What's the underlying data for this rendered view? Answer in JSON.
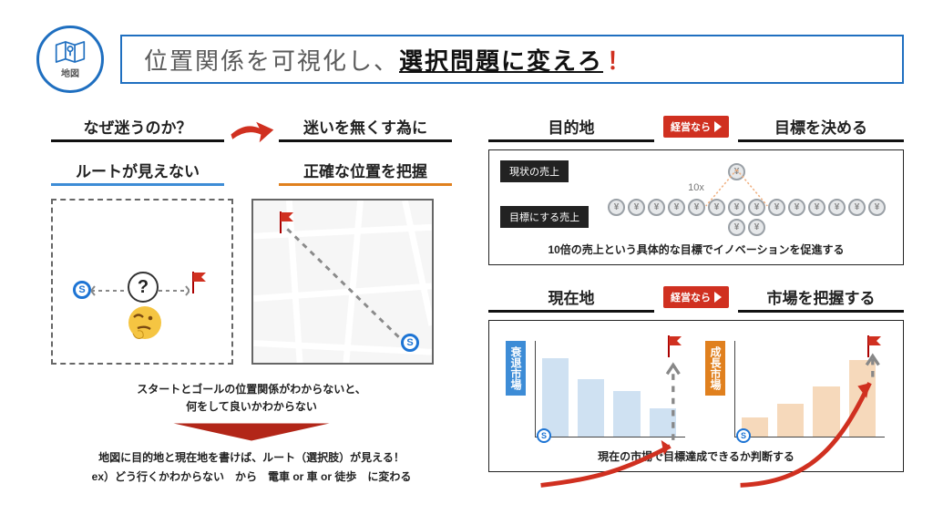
{
  "colors": {
    "brand_blue": "#1f6fc0",
    "underline_blue": "#3d8cd6",
    "underline_orange": "#e0801e",
    "red": "#d03020",
    "black": "#111111",
    "gray": "#666666",
    "coin_border": "#9aa0a6",
    "coin_fill": "#e6e8ea",
    "bar_blue": "#cfe1f2",
    "bar_orange": "#f6d9bb",
    "bg": "#ffffff"
  },
  "header": {
    "icon_label": "地図",
    "title_pre": "位置関係を可視化し、",
    "title_emph": "選択問題に変えろ",
    "title_bang": "！"
  },
  "left": {
    "q1": "なぜ迷うのか？",
    "q2": "迷いを無くす為に",
    "sub1": "ルートが見えない",
    "sub2": "正確な位置を把握",
    "question_mark": "?",
    "note_line1": "スタートとゴールの位置関係がわからないと、",
    "note_line2": "何をして良いかわからない",
    "concl_line1": "地図に目的地と現在地を書けば、ルート（選択肢）が見える！",
    "concl_line2": "ex）どう行くかわからない　から　電車 or 車 or 徒歩　に変わる"
  },
  "right": {
    "keiei_label": "経営なら",
    "block1": {
      "left_head": "目的地",
      "right_head": "目標を決める",
      "pill1": "現状の売上",
      "pill2": "目標にする売上",
      "tenx": "10x",
      "caption": "10倍の売上という具体的な目標でイノベーションを促進する",
      "top_coin_count": 1,
      "bottom_coin_count": 16,
      "coin_glyph": "¥"
    },
    "block2": {
      "left_head": "現在地",
      "right_head": "市場を把握する",
      "chart_a_label": "衰退市場",
      "chart_b_label": "成長市場",
      "caption": "現在の市場で目標達成できるか判断する",
      "chart_a": {
        "color": "blue",
        "bars": [
          0.82,
          0.6,
          0.48,
          0.3
        ]
      },
      "chart_b": {
        "color": "orange",
        "bars": [
          0.2,
          0.34,
          0.52,
          0.8
        ]
      }
    }
  }
}
